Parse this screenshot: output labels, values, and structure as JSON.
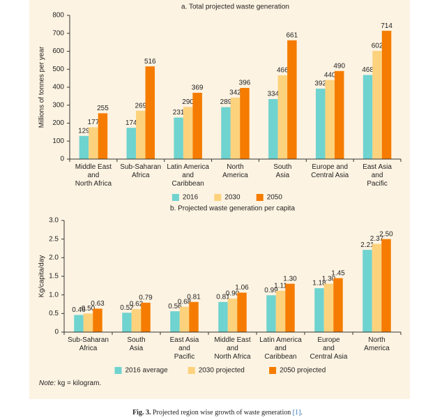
{
  "chart_data": [
    {
      "type": "bar",
      "title": "a. Total projected waste generation",
      "y_label": "Millions of tonnes per year",
      "categories": [
        "Middle East\nand\nNorth Africa",
        "Sub-Saharan\nAfrica",
        "Latin America\nand\nCaribbean",
        "North\nAmerica",
        "South\nAsia",
        "Europe and\nCentral Asia",
        "East Asia\nand\nPacific"
      ],
      "series": [
        {
          "name": "2016",
          "color": "#6fd3cf",
          "values": [
            129,
            174,
            231,
            289,
            334,
            392,
            468
          ]
        },
        {
          "name": "2030",
          "color": "#fdd27d",
          "values": [
            177,
            269,
            290,
            342,
            466,
            440,
            602
          ]
        },
        {
          "name": "2050",
          "color": "#f57c00",
          "values": [
            255,
            516,
            369,
            396,
            661,
            490,
            714
          ]
        }
      ],
      "ylim": [
        0,
        800
      ],
      "yticks": [
        0,
        100,
        200,
        300,
        400,
        500,
        600,
        700,
        800
      ],
      "legend": "bottom"
    },
    {
      "type": "bar",
      "title": "b. Projected waste generation per capita",
      "y_label": "Kg/capita/day",
      "categories": [
        "Sub-Saharan\nAfrica",
        "South\nAsia",
        "East Asia\nand\nPacific",
        "Middle East\nand\nNorth Africa",
        "Latin America\nand\nCaribbean",
        "Europe\nand\nCentral Asia",
        "North\nAmerica"
      ],
      "series": [
        {
          "name": "2016 average",
          "color": "#6fd3cf",
          "values": [
            0.46,
            0.52,
            0.56,
            0.81,
            0.99,
            1.18,
            2.21
          ],
          "value_labels": [
            "0.46",
            "0.52",
            "0.56",
            "0.81",
            "0.99",
            "1.18",
            "2.21"
          ]
        },
        {
          "name": "2030 projected",
          "color": "#fdd27d",
          "values": [
            0.5,
            0.62,
            0.68,
            0.9,
            1.11,
            1.3,
            2.37
          ],
          "value_labels": [
            "0.50",
            "0.62",
            "0.68",
            "0.90",
            "1.11",
            "1.30",
            "2.37"
          ]
        },
        {
          "name": "2050 projected",
          "color": "#f57c00",
          "values": [
            0.63,
            0.79,
            0.81,
            1.06,
            1.3,
            1.45,
            2.5
          ],
          "value_labels": [
            "0.63",
            "0.79",
            "0.81",
            "1.06",
            "1.30",
            "1.45",
            "2.50"
          ]
        }
      ],
      "ylim": [
        0,
        3
      ],
      "yticks": [
        0,
        0.5,
        {
          "value": 1,
          "label": "1.0"
        },
        {
          "value": 1.5,
          "label": "1.5"
        },
        {
          "value": 2,
          "label": "2.0"
        },
        {
          "value": 2.5,
          "label": "2.5"
        },
        {
          "value": 3,
          "label": "3.0"
        }
      ],
      "legend": "bottom"
    }
  ],
  "note": {
    "label": "Note:",
    "text": "kg = kilogram."
  },
  "caption": {
    "label": "Fig. 3.",
    "text": "Projected region wise growth of waste generation",
    "ref": "[1]",
    "end": "."
  }
}
